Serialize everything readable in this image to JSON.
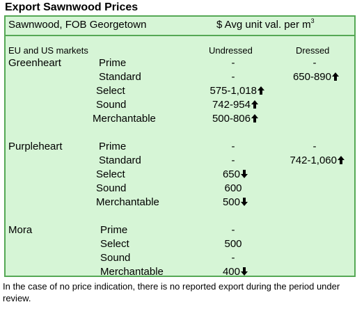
{
  "title": "Export Sawnwood Prices",
  "header": {
    "left": "Sawnwood, FOB Georgetown",
    "right": "$ Avg unit val. per m",
    "right_sup": "3"
  },
  "subheader": {
    "markets": "EU and US markets",
    "col_undressed": "Undressed",
    "col_dressed": "Dressed"
  },
  "groups": {
    "greenheart": {
      "name": "Greenheart",
      "rows": [
        {
          "grade": "Prime",
          "undressed": "-",
          "dressed": "-"
        },
        {
          "grade": "Standard",
          "undressed": "-",
          "dressed": "650-890",
          "dressed_trend": "up"
        },
        {
          "grade": "Select",
          "undressed": "575-1,018",
          "undressed_trend": "up"
        },
        {
          "grade": "Sound",
          "undressed": "742-954",
          "undressed_trend": "up"
        },
        {
          "grade": "Merchantable",
          "undressed": "500-806",
          "undressed_trend": "up"
        }
      ]
    },
    "purpleheart": {
      "name": "Purpleheart",
      "rows": [
        {
          "grade": "Prime",
          "undressed": "-",
          "dressed": "-"
        },
        {
          "grade": "Standard",
          "undressed": "-",
          "dressed": "742-1,060",
          "dressed_trend": "up"
        },
        {
          "grade": "Select",
          "undressed": "650",
          "undressed_trend": "down"
        },
        {
          "grade": "Sound",
          "undressed": "600"
        },
        {
          "grade": "Merchantable",
          "undressed": "500",
          "undressed_trend": "down"
        }
      ]
    },
    "mora": {
      "name": "Mora",
      "rows": [
        {
          "grade": "Prime",
          "undressed": "-"
        },
        {
          "grade": "Select",
          "undressed": "500"
        },
        {
          "grade": "Sound",
          "undressed": "-"
        },
        {
          "grade": "Merchantable",
          "undressed": "400",
          "undressed_trend": "down"
        }
      ]
    }
  },
  "note": "In the case of no price indication, there is no reported export during the period under review.",
  "colors": {
    "background": "#d6f5d6",
    "border": "#55a855"
  },
  "icons": {
    "up": "arrow-up-icon",
    "down": "arrow-down-icon"
  }
}
